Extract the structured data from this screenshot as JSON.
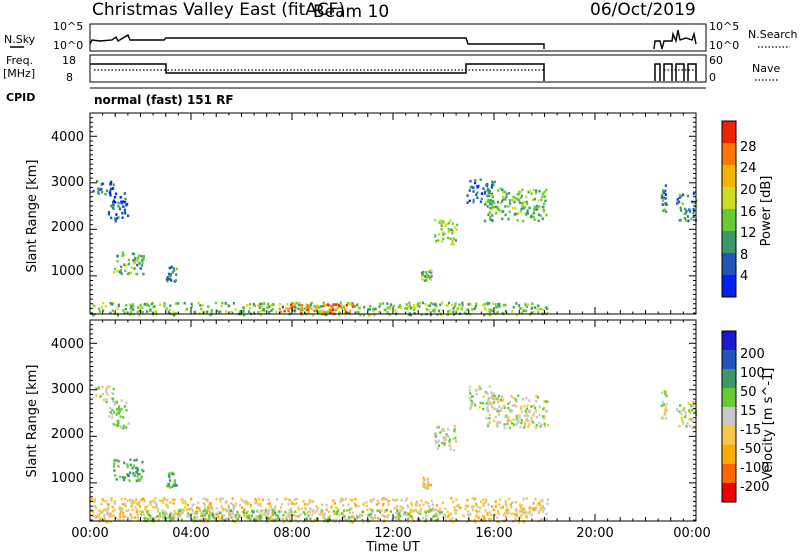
{
  "header": {
    "title": "Christmas Valley East (fitACF)",
    "beam": "Beam 10",
    "date": "06/Oct/2019"
  },
  "status": {
    "nsky_label": "N.Sky",
    "nsearch_label": "N.Search",
    "freq_label_line1": "Freq.",
    "freq_label_line2": "[MHz]",
    "nave_label": "Nave",
    "cpid_label": "CPID",
    "cpid_text": "normal (fast) 151 RF",
    "nsky_ticks": [
      "10^5",
      "10^0"
    ],
    "nsearch_ticks": [
      "10^5",
      "10^0"
    ],
    "freq_ticks": [
      "18",
      "8"
    ],
    "nave_ticks": [
      "60",
      "0"
    ]
  },
  "colors": {
    "power_scale": [
      "#0022ee",
      "#2255bb",
      "#3a9a6a",
      "#66cc33",
      "#ccdd22",
      "#f5b400",
      "#ff7700",
      "#ee2200"
    ],
    "velocity_scale": [
      "#ee0000",
      "#ff6600",
      "#ffaa00",
      "#f5c84a",
      "#c8c8c8",
      "#66cc33",
      "#3a9a6a",
      "#2255bb",
      "#1a1acc"
    ]
  },
  "chart_data": [
    {
      "type": "heatmap",
      "panel": "power",
      "ylabel": "Slant Range [km]",
      "y_ticks": [
        "1000",
        "2000",
        "3000",
        "4000"
      ],
      "x_ticks": [],
      "ylim": [
        180,
        4500
      ],
      "xlim_hours": [
        0,
        24
      ],
      "colorbar_label": "Power [dB]",
      "colorbar_ticks": [
        "4",
        "8",
        "12",
        "16",
        "20",
        "24",
        "28"
      ],
      "colorbar_range": [
        0,
        32
      ],
      "regions": [
        {
          "t0": 0.1,
          "t1": 0.9,
          "r0": 2750,
          "r1": 3100,
          "value": 7
        },
        {
          "t0": 0.7,
          "t1": 1.5,
          "r0": 2200,
          "r1": 2800,
          "value": 5
        },
        {
          "t0": 0.9,
          "t1": 2.1,
          "r0": 1050,
          "r1": 1550,
          "value": 12
        },
        {
          "t0": 3.0,
          "t1": 3.4,
          "r0": 900,
          "r1": 1250,
          "value": 10
        },
        {
          "t0": 13.1,
          "t1": 13.5,
          "r0": 900,
          "r1": 1150,
          "value": 12
        },
        {
          "t0": 13.6,
          "t1": 14.5,
          "r0": 1700,
          "r1": 2250,
          "value": 16
        },
        {
          "t0": 14.9,
          "t1": 16.0,
          "r0": 2600,
          "r1": 3100,
          "value": 7
        },
        {
          "t0": 15.6,
          "t1": 18.1,
          "r0": 2200,
          "r1": 2900,
          "value": 13
        },
        {
          "t0": 22.6,
          "t1": 22.8,
          "r0": 2400,
          "r1": 3000,
          "value": 8
        },
        {
          "t0": 23.2,
          "t1": 24.0,
          "r0": 2200,
          "r1": 2800,
          "value": 9
        },
        {
          "t0": 0.0,
          "t1": 18.1,
          "r0": 180,
          "r1": 450,
          "value": 14
        },
        {
          "t0": 7.5,
          "t1": 10.5,
          "r0": 200,
          "r1": 420,
          "value": 26
        }
      ]
    },
    {
      "type": "heatmap",
      "panel": "velocity",
      "ylabel": "Slant Range [km]",
      "xlabel": "Time UT",
      "y_ticks": [
        "1000",
        "2000",
        "3000",
        "4000"
      ],
      "x_ticks": [
        "00:00",
        "04:00",
        "08:00",
        "12:00",
        "16:00",
        "20:00",
        "00:00"
      ],
      "x_tick_hours": [
        0,
        4,
        8,
        12,
        16,
        20,
        24
      ],
      "ylim": [
        180,
        4500
      ],
      "xlim_hours": [
        0,
        24
      ],
      "colorbar_label": "Velocity [m s^-1]",
      "colorbar_ticks": [
        "200",
        "100",
        "50",
        "15",
        "-15",
        "-50",
        "-100",
        "-200"
      ],
      "colorbar_levels": [
        -250,
        -200,
        -100,
        -50,
        -15,
        15,
        50,
        100,
        200,
        250
      ],
      "regions": [
        {
          "t0": 0.1,
          "t1": 0.9,
          "r0": 2750,
          "r1": 3100,
          "value": 0
        },
        {
          "t0": 0.7,
          "t1": 1.5,
          "r0": 2200,
          "r1": 2800,
          "value": 20
        },
        {
          "t0": 0.9,
          "t1": 2.1,
          "r0": 1050,
          "r1": 1550,
          "value": 60
        },
        {
          "t0": 3.0,
          "t1": 3.4,
          "r0": 900,
          "r1": 1250,
          "value": 40
        },
        {
          "t0": 13.1,
          "t1": 13.5,
          "r0": 900,
          "r1": 1150,
          "value": -30
        },
        {
          "t0": 13.6,
          "t1": 14.5,
          "r0": 1700,
          "r1": 2250,
          "value": 0
        },
        {
          "t0": 14.9,
          "t1": 16.0,
          "r0": 2600,
          "r1": 3100,
          "value": 5
        },
        {
          "t0": 15.6,
          "t1": 18.1,
          "r0": 2200,
          "r1": 2900,
          "value": 0
        },
        {
          "t0": 22.6,
          "t1": 22.8,
          "r0": 2400,
          "r1": 3000,
          "value": 0
        },
        {
          "t0": 23.2,
          "t1": 24.0,
          "r0": 2200,
          "r1": 2800,
          "value": 0
        },
        {
          "t0": 0.0,
          "t1": 18.1,
          "r0": 180,
          "r1": 700,
          "value": -30
        },
        {
          "t0": 2.0,
          "t1": 14.0,
          "r0": 200,
          "r1": 450,
          "value": 25
        }
      ]
    }
  ]
}
